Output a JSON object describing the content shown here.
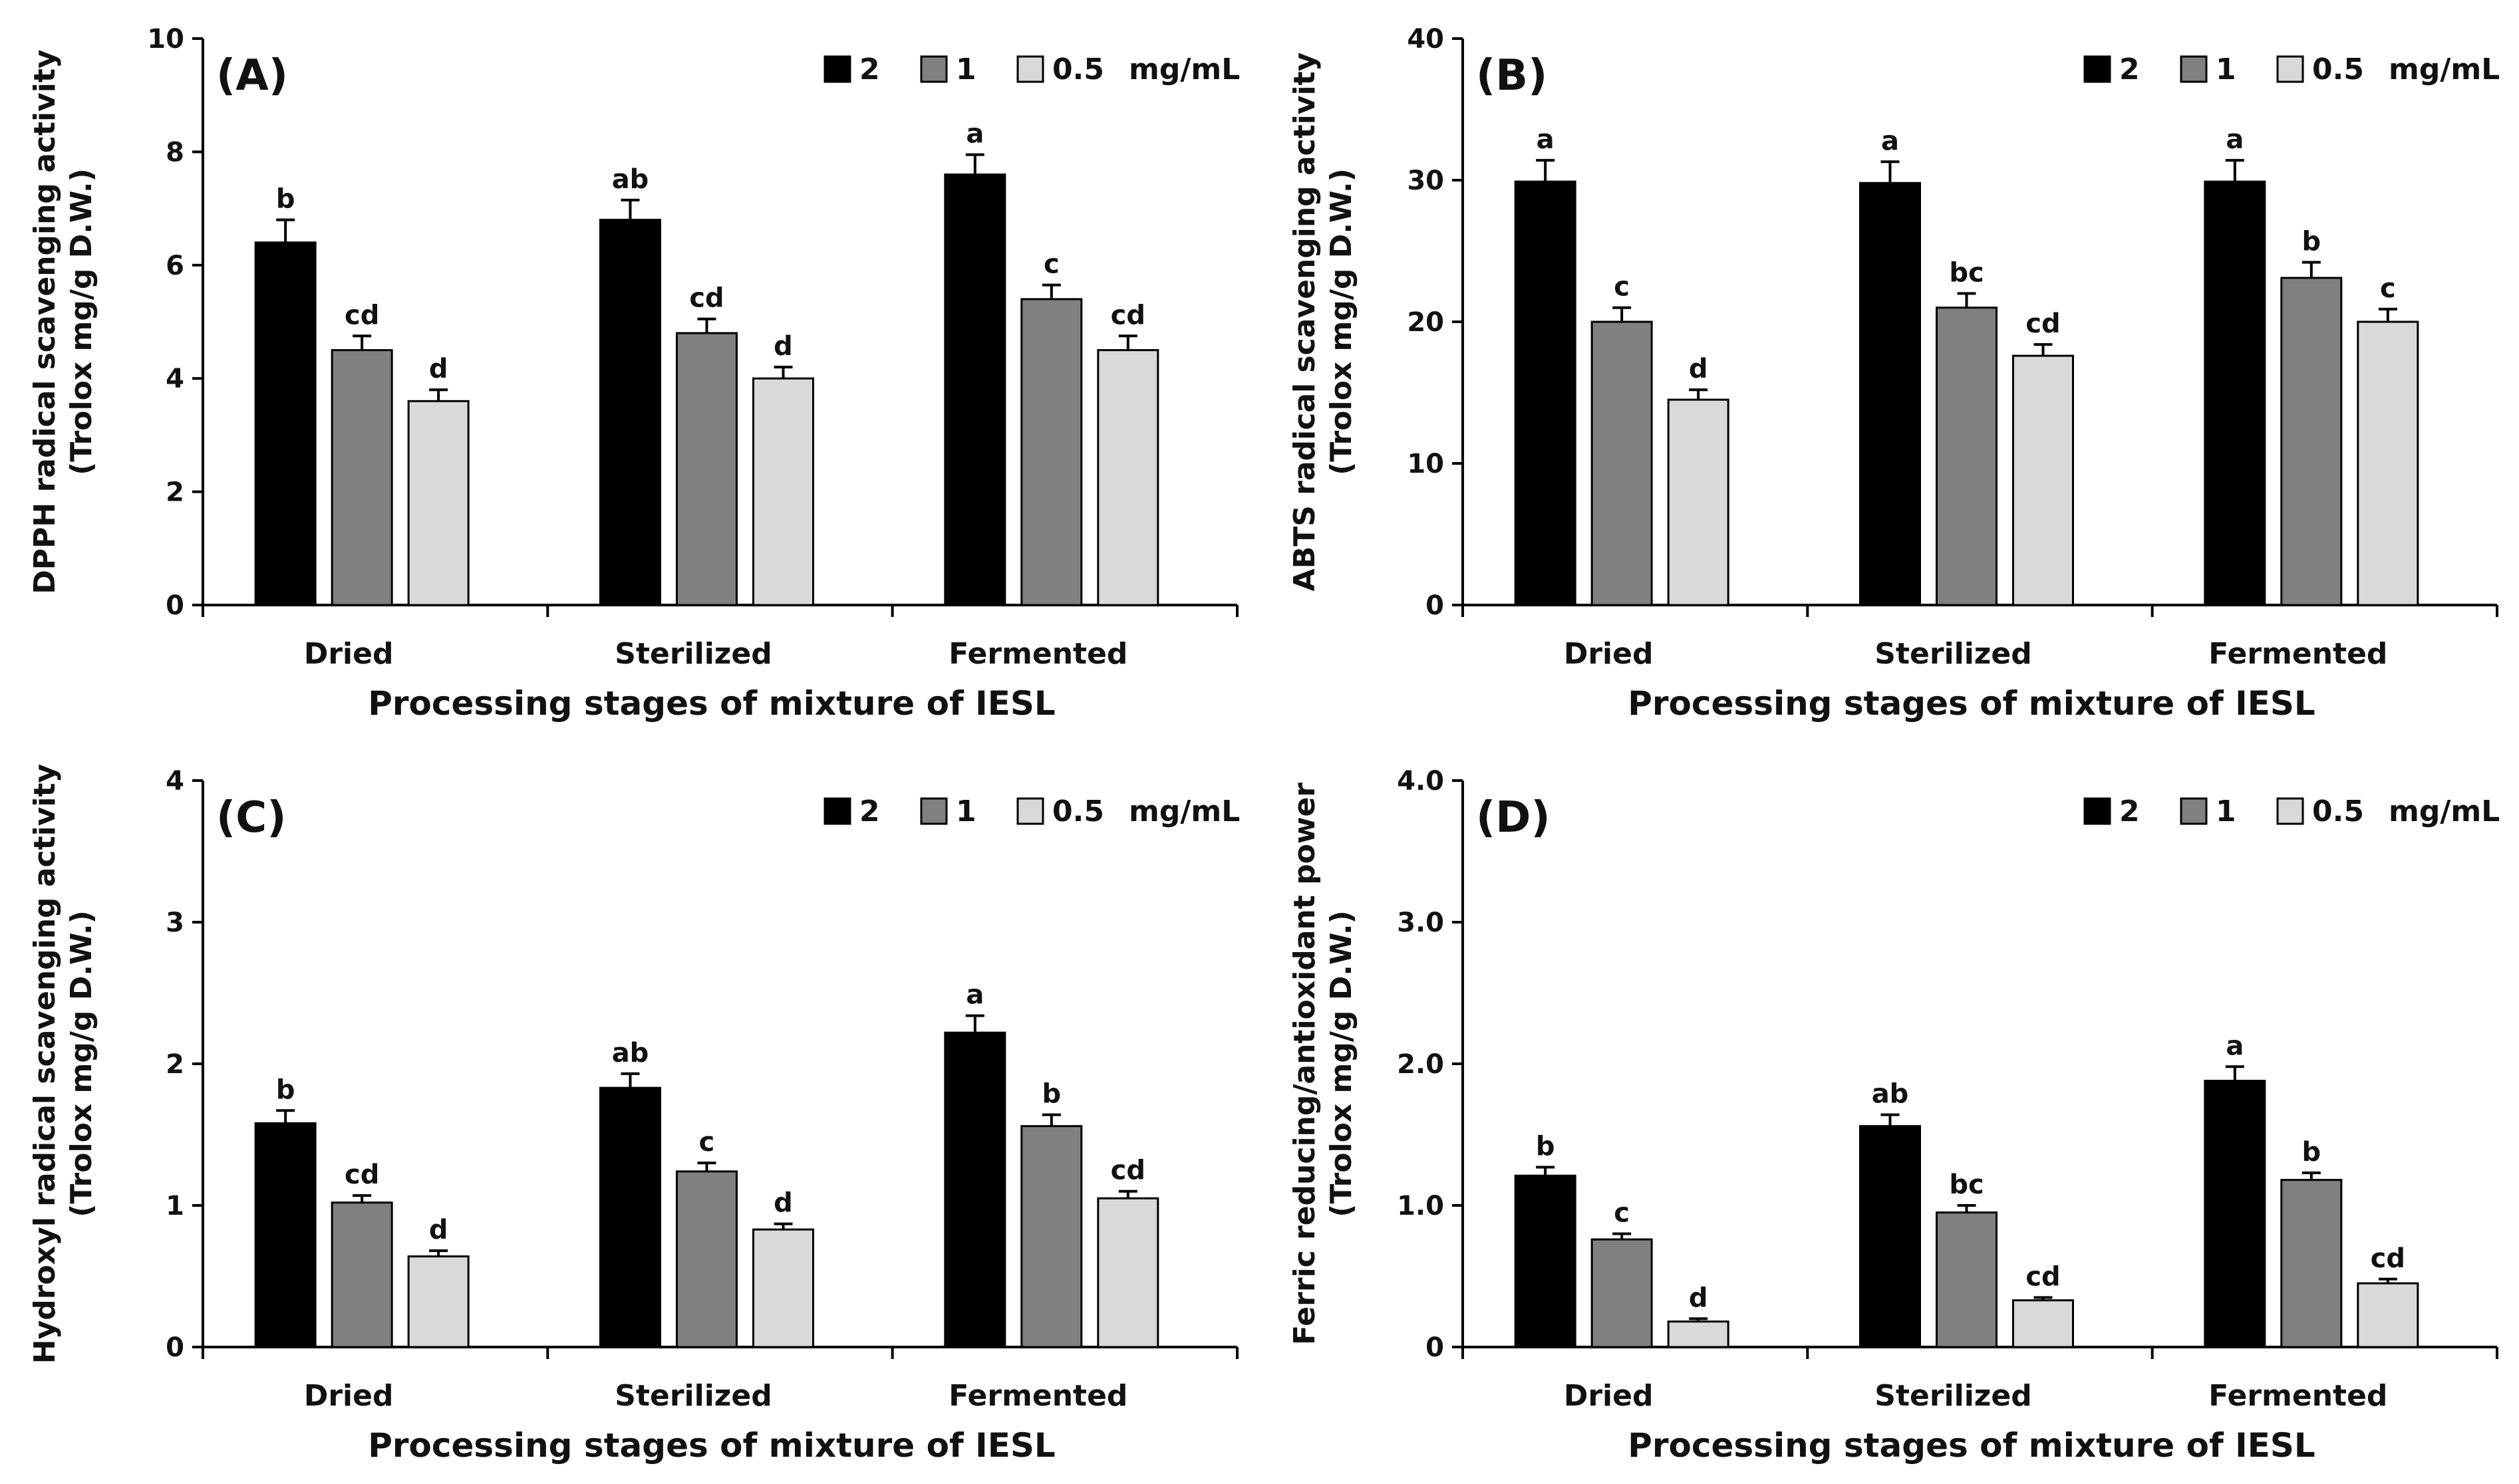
{
  "colors": {
    "series_2": "#000000",
    "series_1": "#808080",
    "series_05": "#d9d9d9",
    "axis": "#000000"
  },
  "legend": {
    "labels": [
      "2",
      "1",
      "0.5"
    ],
    "unit": "mg/mL"
  },
  "chart_data": [
    {
      "id": "A",
      "type": "bar",
      "title": "(A)",
      "ylabel_line1": "DPPH radical scavenging activity",
      "ylabel_line2": "(Trolox mg/g D.W.)",
      "xlabel": "Processing stages of mixture of IESL",
      "categories": [
        "Dried",
        "Sterilized",
        "Fermented"
      ],
      "ylim": [
        0,
        10
      ],
      "yticks": [
        0,
        2,
        4,
        6,
        8,
        10
      ],
      "ytick_labels": [
        "0",
        "2",
        "4",
        "6",
        "8",
        "10"
      ],
      "series": [
        {
          "name": "2",
          "values": [
            6.4,
            6.8,
            7.6
          ],
          "errors": [
            0.4,
            0.35,
            0.35
          ],
          "labels": [
            "b",
            "ab",
            "a"
          ]
        },
        {
          "name": "1",
          "values": [
            4.5,
            4.8,
            5.4
          ],
          "errors": [
            0.25,
            0.25,
            0.25
          ],
          "labels": [
            "cd",
            "cd",
            "c"
          ]
        },
        {
          "name": "0.5",
          "values": [
            3.6,
            4.0,
            4.5
          ],
          "errors": [
            0.2,
            0.2,
            0.25
          ],
          "labels": [
            "d",
            "d",
            "cd"
          ]
        }
      ]
    },
    {
      "id": "B",
      "type": "bar",
      "title": "(B)",
      "ylabel_line1": "ABTS radical scavenging activity",
      "ylabel_line2": "(Trolox mg/g D.W.)",
      "xlabel": "Processing stages of mixture of IESL",
      "categories": [
        "Dried",
        "Sterilized",
        "Fermented"
      ],
      "ylim": [
        0,
        40
      ],
      "yticks": [
        0,
        10,
        20,
        30,
        40
      ],
      "ytick_labels": [
        "0",
        "10",
        "20",
        "30",
        "40"
      ],
      "series": [
        {
          "name": "2",
          "values": [
            29.9,
            29.8,
            29.9
          ],
          "errors": [
            1.5,
            1.5,
            1.5
          ],
          "labels": [
            "a",
            "a",
            "a"
          ]
        },
        {
          "name": "1",
          "values": [
            20.0,
            21.0,
            23.1
          ],
          "errors": [
            1.0,
            1.0,
            1.1
          ],
          "labels": [
            "c",
            "bc",
            "b"
          ]
        },
        {
          "name": "0.5",
          "values": [
            14.5,
            17.6,
            20.0
          ],
          "errors": [
            0.7,
            0.8,
            0.9
          ],
          "labels": [
            "d",
            "cd",
            "c"
          ]
        }
      ]
    },
    {
      "id": "C",
      "type": "bar",
      "title": "(C)",
      "ylabel_line1": "Hydroxyl radical scavenging activity",
      "ylabel_line2": "(Trolox mg/g D.W.)",
      "xlabel": "Processing stages of mixture of IESL",
      "categories": [
        "Dried",
        "Sterilized",
        "Fermented"
      ],
      "ylim": [
        0,
        4
      ],
      "yticks": [
        0,
        1,
        2,
        3,
        4
      ],
      "ytick_labels": [
        "0",
        "1",
        "2",
        "3",
        "4"
      ],
      "series": [
        {
          "name": "2",
          "values": [
            1.58,
            1.83,
            2.22
          ],
          "errors": [
            0.09,
            0.1,
            0.12
          ],
          "labels": [
            "b",
            "ab",
            "a"
          ]
        },
        {
          "name": "1",
          "values": [
            1.02,
            1.24,
            1.56
          ],
          "errors": [
            0.05,
            0.06,
            0.08
          ],
          "labels": [
            "cd",
            "c",
            "b"
          ]
        },
        {
          "name": "0.5",
          "values": [
            0.64,
            0.83,
            1.05
          ],
          "errors": [
            0.04,
            0.04,
            0.05
          ],
          "labels": [
            "d",
            "d",
            "cd"
          ]
        }
      ]
    },
    {
      "id": "D",
      "type": "bar",
      "title": "(D)",
      "ylabel_line1": "Ferric reducing/antioxidant power",
      "ylabel_line2": "(Trolox mg/g D.W.)",
      "xlabel": "Processing stages of mixture of IESL",
      "categories": [
        "Dried",
        "Sterilized",
        "Fermented"
      ],
      "ylim": [
        0,
        4
      ],
      "yticks": [
        0,
        1,
        2,
        3,
        4
      ],
      "ytick_labels": [
        "0",
        "1.0",
        "2.0",
        "3.0",
        "4.0"
      ],
      "series": [
        {
          "name": "2",
          "values": [
            1.21,
            1.56,
            1.88
          ],
          "errors": [
            0.06,
            0.08,
            0.1
          ],
          "labels": [
            "b",
            "ab",
            "a"
          ]
        },
        {
          "name": "1",
          "values": [
            0.76,
            0.95,
            1.18
          ],
          "errors": [
            0.04,
            0.05,
            0.05
          ],
          "labels": [
            "c",
            "bc",
            "b"
          ]
        },
        {
          "name": "0.5",
          "values": [
            0.18,
            0.33,
            0.45
          ],
          "errors": [
            0.02,
            0.02,
            0.03
          ],
          "labels": [
            "d",
            "cd",
            "cd"
          ]
        }
      ]
    }
  ]
}
